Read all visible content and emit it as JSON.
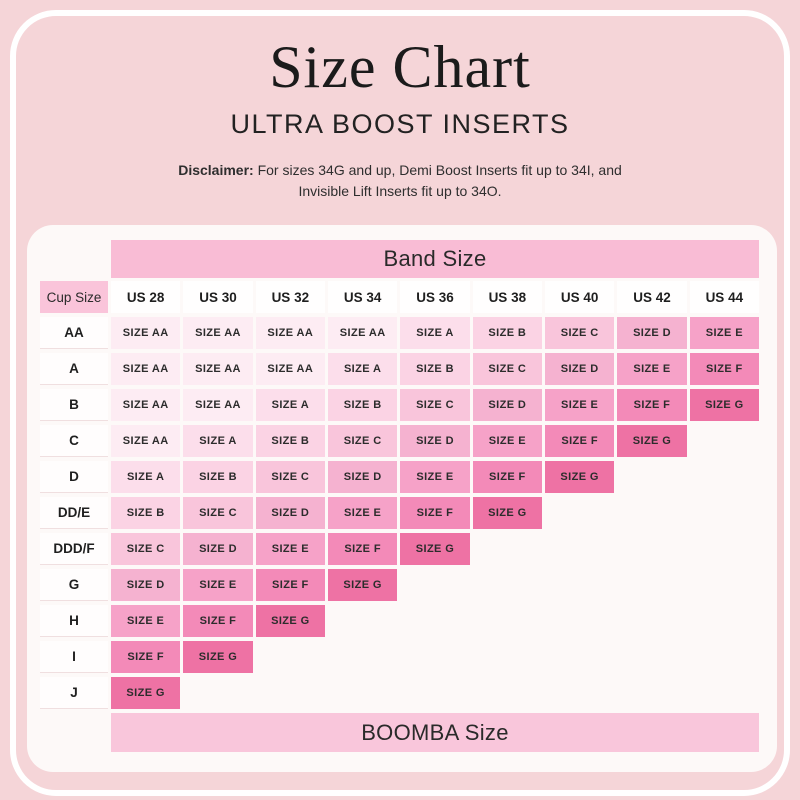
{
  "header": {
    "title": "Size Chart",
    "subtitle": "ULTRA BOOST INSERTS",
    "disclaimer_label": "Disclaimer:",
    "disclaimer_line1": "For sizes 34G and up, Demi Boost Inserts fit up to 34I, and",
    "disclaimer_line2": "Invisible Lift Inserts fit up to 34O."
  },
  "chart_data": {
    "type": "table",
    "title": "Size Chart",
    "subtitle": "ULTRA BOOST INSERTS",
    "band_header": "Band Size",
    "cup_header": "Cup Size",
    "footer_label": "BOOMBA Size",
    "band_sizes": [
      "US 28",
      "US 30",
      "US 32",
      "US 34",
      "US 36",
      "US 38",
      "US 40",
      "US 42",
      "US 44"
    ],
    "rows": [
      {
        "cup": "AA",
        "cells": [
          "SIZE AA",
          "SIZE AA",
          "SIZE AA",
          "SIZE AA",
          "SIZE A",
          "SIZE B",
          "SIZE C",
          "SIZE D",
          "SIZE E"
        ]
      },
      {
        "cup": "A",
        "cells": [
          "SIZE AA",
          "SIZE AA",
          "SIZE AA",
          "SIZE A",
          "SIZE B",
          "SIZE C",
          "SIZE D",
          "SIZE E",
          "SIZE F"
        ]
      },
      {
        "cup": "B",
        "cells": [
          "SIZE AA",
          "SIZE AA",
          "SIZE A",
          "SIZE B",
          "SIZE C",
          "SIZE D",
          "SIZE E",
          "SIZE F",
          "SIZE G"
        ]
      },
      {
        "cup": "C",
        "cells": [
          "SIZE AA",
          "SIZE A",
          "SIZE B",
          "SIZE C",
          "SIZE D",
          "SIZE E",
          "SIZE F",
          "SIZE G"
        ]
      },
      {
        "cup": "D",
        "cells": [
          "SIZE A",
          "SIZE B",
          "SIZE C",
          "SIZE D",
          "SIZE E",
          "SIZE F",
          "SIZE G"
        ]
      },
      {
        "cup": "DD/E",
        "cells": [
          "SIZE B",
          "SIZE C",
          "SIZE D",
          "SIZE E",
          "SIZE F",
          "SIZE G"
        ]
      },
      {
        "cup": "DDD/F",
        "cells": [
          "SIZE C",
          "SIZE D",
          "SIZE E",
          "SIZE F",
          "SIZE G"
        ]
      },
      {
        "cup": "G",
        "cells": [
          "SIZE D",
          "SIZE E",
          "SIZE F",
          "SIZE G"
        ]
      },
      {
        "cup": "H",
        "cells": [
          "SIZE E",
          "SIZE F",
          "SIZE G"
        ]
      },
      {
        "cup": "I",
        "cells": [
          "SIZE F",
          "SIZE G"
        ]
      },
      {
        "cup": "J",
        "cells": [
          "SIZE G"
        ]
      }
    ]
  },
  "colors": {
    "page_background": "#f5d5d8",
    "frame_border": "#ffffff",
    "card_background": "#fdf9f8",
    "band_header_background": "#f9bcd5",
    "cup_header_background": "#fac4da",
    "footer_background": "#f9c6db",
    "column_header_background": "#fffefe",
    "size_colors": {
      "AA": "#fdecf3",
      "A": "#fcdeeb",
      "B": "#fbd3e4",
      "C": "#f9c5db",
      "D": "#f5b2d0",
      "E": "#f6a2c8",
      "F": "#f38ab8",
      "G": "#ee72a4"
    }
  }
}
